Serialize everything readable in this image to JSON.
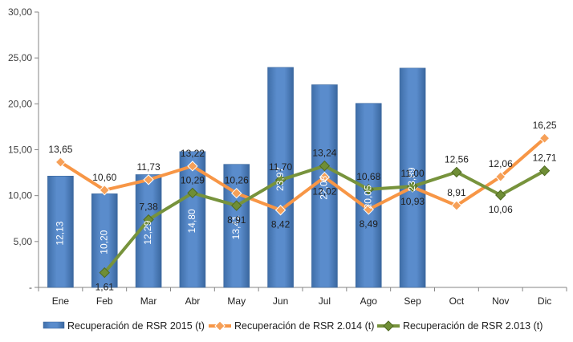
{
  "chart_data": {
    "type": "bar",
    "categories": [
      "Ene",
      "Feb",
      "Mar",
      "Abr",
      "May",
      "Jun",
      "Jul",
      "Ago",
      "Sep",
      "Oct",
      "Nov",
      "Dic"
    ],
    "ylim": [
      0,
      30
    ],
    "yticks": [
      0,
      5,
      10,
      15,
      20,
      25,
      30
    ],
    "ytick_labels": [
      "-",
      "5,00",
      "10,00",
      "15,00",
      "20,00",
      "25,00",
      "30,00"
    ],
    "grid": false,
    "legend_position": "bottom",
    "series": [
      {
        "name": "Recuperación de RSR 2015 (t)",
        "type": "bar",
        "color": "#4f81bd",
        "values": [
          12.13,
          10.2,
          12.29,
          14.8,
          13.41,
          23.97,
          22.08,
          20.05,
          23.89,
          null,
          null,
          null
        ],
        "labels": [
          "12,13",
          "10,20",
          "12,29",
          "14,80",
          "13,41",
          "23,97",
          "22,08",
          "20,05",
          "23,89",
          "",
          "",
          ""
        ]
      },
      {
        "name": "Recuperación de RSR 2.014 (t)",
        "type": "line",
        "color": "#f79646",
        "values": [
          13.65,
          10.6,
          11.73,
          13.22,
          10.26,
          8.42,
          12.02,
          8.49,
          10.93,
          8.91,
          12.06,
          16.25
        ],
        "labels": [
          "13,65",
          "10,60",
          "11,73",
          "13,22",
          "10,26",
          "8,42",
          "12,02",
          "8,49",
          "10,93",
          "8,91",
          "12,06",
          "16,25"
        ]
      },
      {
        "name": "Recuperación de RSR 2.013 (t)",
        "type": "line",
        "color": "#77933c",
        "values": [
          null,
          1.61,
          7.38,
          10.29,
          8.91,
          11.7,
          13.24,
          10.68,
          11.0,
          12.56,
          10.06,
          12.71
        ],
        "labels": [
          "",
          "1,61",
          "7,38",
          "10,29",
          "8,91",
          "11,70",
          "13,24",
          "10,68",
          "11,00",
          "12,56",
          "10,06",
          "12,71"
        ]
      }
    ]
  }
}
